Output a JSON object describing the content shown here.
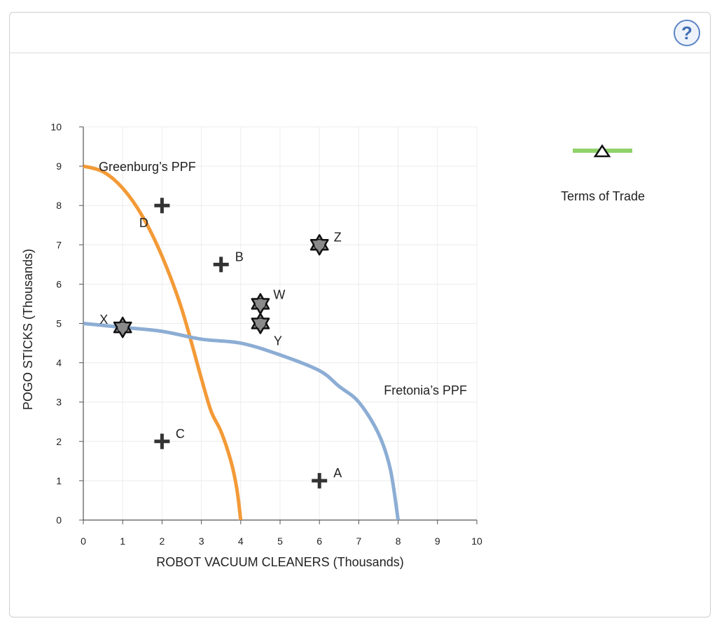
{
  "help_label": "?",
  "legend": {
    "terms_of_trade_label": "Terms of Trade",
    "line_color": "#8fd16a",
    "marker": "triangle-icon"
  },
  "chart_data": {
    "type": "line",
    "xlabel": "ROBOT VACUUM CLEANERS (Thousands)",
    "ylabel": "POGO STICKS (Thousands)",
    "xlim": [
      0,
      10
    ],
    "ylim": [
      0,
      10
    ],
    "xticks": [
      "0",
      "1",
      "2",
      "3",
      "4",
      "5",
      "6",
      "7",
      "8",
      "9",
      "10"
    ],
    "yticks": [
      "0",
      "1",
      "2",
      "3",
      "4",
      "5",
      "6",
      "7",
      "8",
      "9",
      "10"
    ],
    "grid": true,
    "series": [
      {
        "name": "Greenburg’s PPF",
        "color": "#f39a37",
        "x": [
          0,
          0.5,
          1,
          1.5,
          2,
          2.5,
          3,
          3.25,
          3.5,
          3.75,
          3.9,
          4
        ],
        "y": [
          9,
          8.86,
          8.44,
          7.73,
          6.71,
          5.37,
          3.6,
          2.76,
          2.25,
          1.5,
          0.8,
          0
        ]
      },
      {
        "name": "Fretonia’s PPF",
        "color": "#8cadd4",
        "x": [
          0,
          1,
          2,
          3,
          4,
          5,
          6,
          6.5,
          7,
          7.5,
          7.8,
          8
        ],
        "y": [
          5,
          4.9,
          4.8,
          4.6,
          4.5,
          4.2,
          3.8,
          3.4,
          3.0,
          2.2,
          1.3,
          0
        ]
      }
    ],
    "points": [
      {
        "label": "A",
        "x": 6,
        "y": 1,
        "marker": "plus"
      },
      {
        "label": "B",
        "x": 3.5,
        "y": 6.5,
        "marker": "plus"
      },
      {
        "label": "C",
        "x": 2,
        "y": 2,
        "marker": "plus"
      },
      {
        "label": "D",
        "x": 2,
        "y": 8,
        "marker": "plus"
      },
      {
        "label": "W",
        "x": 4.5,
        "y": 5.5,
        "marker": "star"
      },
      {
        "label": "X",
        "x": 1,
        "y": 4.9,
        "marker": "star"
      },
      {
        "label": "Y",
        "x": 4.5,
        "y": 5,
        "marker": "star"
      },
      {
        "label": "Z",
        "x": 6,
        "y": 7,
        "marker": "star"
      }
    ]
  }
}
